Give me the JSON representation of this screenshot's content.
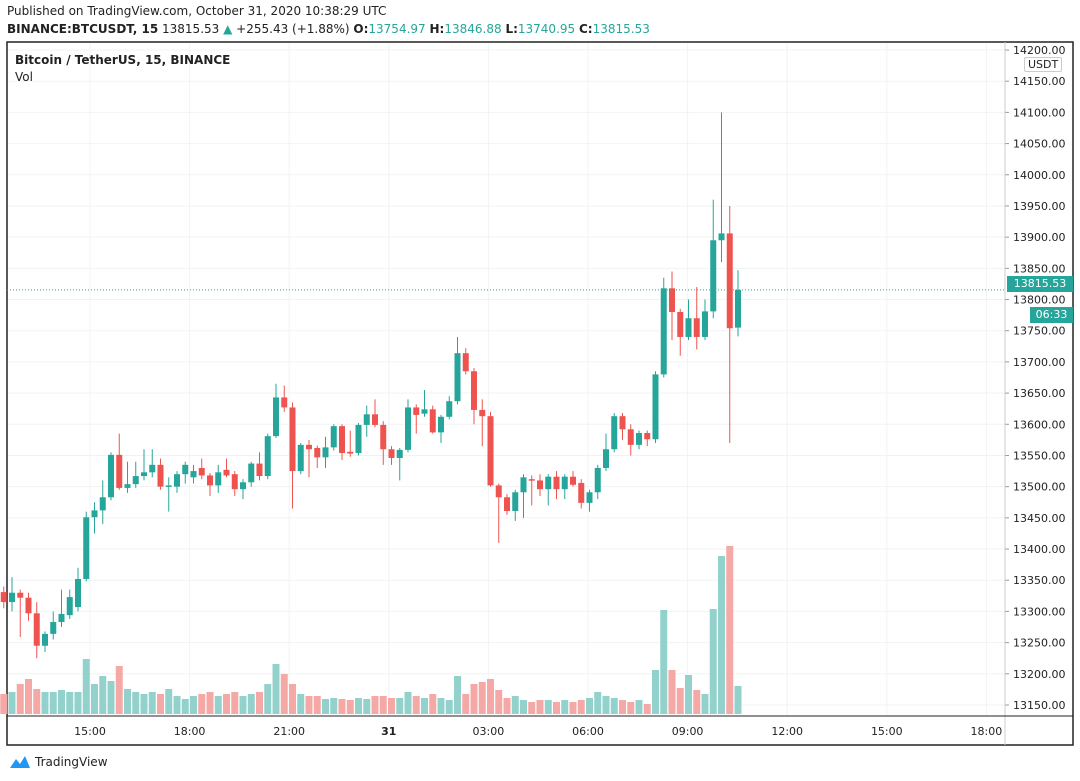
{
  "header": {
    "published": "Published on TradingView.com, October 31, 2020 10:38:29 UTC",
    "symbol": "BINANCE:BTCUSDT, 15",
    "last": "13815.53",
    "change": "+255.43 (+1.88%)",
    "o_label": "O:",
    "o": "13754.97",
    "h_label": "H:",
    "h": "13846.88",
    "l_label": "L:",
    "l": "13740.95",
    "c_label": "C:",
    "c": "13815.53"
  },
  "legend": {
    "title": "Bitcoin / TetherUS, 15, BINANCE",
    "vol": "Vol"
  },
  "price_axis": {
    "currency": "USDT",
    "last_price": "13815.53",
    "countdown": "06:33"
  },
  "footer": {
    "brand": "TradingView"
  },
  "colors": {
    "up": "#26a69a",
    "down": "#ef5350",
    "vol_up": "#93d2cc",
    "vol_down": "#f5a9a7"
  },
  "chart_data": {
    "type": "candlestick",
    "title": "Bitcoin / TetherUS, 15, BINANCE",
    "interval_minutes": 15,
    "ylim": [
      13150,
      14200
    ],
    "y_ticks": [
      "14200.00",
      "14150.00",
      "14100.00",
      "14050.00",
      "14000.00",
      "13950.00",
      "13900.00",
      "13850.00",
      "13800.00",
      "13750.00",
      "13700.00",
      "13650.00",
      "13600.00",
      "13550.00",
      "13500.00",
      "13450.00",
      "13400.00",
      "13350.00",
      "13300.00",
      "13250.00",
      "13200.00",
      "13150.00"
    ],
    "x_ticks": [
      "15:00",
      "18:00",
      "21:00",
      "31",
      "03:00",
      "06:00",
      "09:00",
      "12:00",
      "15:00",
      "18:00"
    ],
    "candle_columns": [
      "open",
      "high",
      "low",
      "close",
      "volume_relative"
    ],
    "candles": [
      [
        13331,
        13340,
        13305,
        13315,
        20
      ],
      [
        13315,
        13355,
        13300,
        13330,
        22
      ],
      [
        13330,
        13335,
        13259,
        13322,
        30
      ],
      [
        13322,
        13330,
        13285,
        13297,
        35
      ],
      [
        13297,
        13315,
        13225,
        13245,
        25
      ],
      [
        13245,
        13268,
        13235,
        13264,
        22
      ],
      [
        13264,
        13300,
        13255,
        13283,
        22
      ],
      [
        13283,
        13335,
        13275,
        13296,
        24
      ],
      [
        13294,
        13335,
        13288,
        13323,
        22
      ],
      [
        13307,
        13370,
        13300,
        13352,
        22
      ],
      [
        13352,
        13460,
        13348,
        13451,
        55
      ],
      [
        13451,
        13475,
        13425,
        13462,
        30
      ],
      [
        13462,
        13510,
        13440,
        13483,
        38
      ],
      [
        13483,
        13555,
        13478,
        13551,
        33
      ],
      [
        13551,
        13585,
        13495,
        13498,
        48
      ],
      [
        13498,
        13540,
        13490,
        13504,
        25
      ],
      [
        13504,
        13540,
        13498,
        13517,
        22
      ],
      [
        13517,
        13560,
        13510,
        13523,
        20
      ],
      [
        13523,
        13560,
        13515,
        13535,
        22
      ],
      [
        13535,
        13545,
        13495,
        13500,
        20
      ],
      [
        13500,
        13515,
        13460,
        13502,
        25
      ],
      [
        13500,
        13525,
        13490,
        13520,
        18
      ],
      [
        13520,
        13540,
        13505,
        13535,
        15
      ],
      [
        13515,
        13535,
        13505,
        13525,
        18
      ],
      [
        13530,
        13545,
        13512,
        13518,
        20
      ],
      [
        13518,
        13522,
        13485,
        13502,
        22
      ],
      [
        13502,
        13535,
        13490,
        13523,
        18
      ],
      [
        13527,
        13545,
        13515,
        13518,
        20
      ],
      [
        13520,
        13525,
        13485,
        13496,
        22
      ],
      [
        13496,
        13512,
        13480,
        13507,
        18
      ],
      [
        13507,
        13540,
        13500,
        13537,
        20
      ],
      [
        13537,
        13555,
        13510,
        13517,
        22
      ],
      [
        13517,
        13585,
        13512,
        13581,
        30
      ],
      [
        13581,
        13665,
        13578,
        13643,
        50
      ],
      [
        13643,
        13662,
        13620,
        13627,
        40
      ],
      [
        13627,
        13635,
        13465,
        13525,
        30
      ],
      [
        13525,
        13570,
        13520,
        13567,
        20
      ],
      [
        13567,
        13575,
        13515,
        13560,
        18
      ],
      [
        13562,
        13566,
        13530,
        13547,
        18
      ],
      [
        13547,
        13580,
        13530,
        13563,
        15
      ],
      [
        13563,
        13600,
        13558,
        13597,
        16
      ],
      [
        13597,
        13600,
        13543,
        13554,
        15
      ],
      [
        13556,
        13590,
        13548,
        13553,
        14
      ],
      [
        13554,
        13602,
        13550,
        13599,
        16
      ],
      [
        13599,
        13630,
        13580,
        13616,
        15
      ],
      [
        13616,
        13640,
        13595,
        13599,
        18
      ],
      [
        13599,
        13605,
        13535,
        13560,
        18
      ],
      [
        13560,
        13565,
        13535,
        13546,
        16
      ],
      [
        13546,
        13562,
        13510,
        13559,
        16
      ],
      [
        13559,
        13640,
        13555,
        13627,
        22
      ],
      [
        13627,
        13632,
        13585,
        13615,
        18
      ],
      [
        13617,
        13655,
        13612,
        13624,
        16
      ],
      [
        13624,
        13630,
        13585,
        13587,
        20
      ],
      [
        13587,
        13615,
        13570,
        13612,
        16
      ],
      [
        13612,
        13645,
        13608,
        13637,
        14
      ],
      [
        13637,
        13740,
        13632,
        13714,
        38
      ],
      [
        13714,
        13722,
        13680,
        13685,
        20
      ],
      [
        13685,
        13690,
        13600,
        13623,
        30
      ],
      [
        13623,
        13640,
        13565,
        13613,
        32
      ],
      [
        13613,
        13620,
        13500,
        13502,
        35
      ],
      [
        13502,
        13505,
        13410,
        13483,
        24
      ],
      [
        13483,
        13488,
        13455,
        13461,
        16
      ],
      [
        13461,
        13495,
        13445,
        13491,
        18
      ],
      [
        13491,
        13520,
        13450,
        13515,
        14
      ],
      [
        13512,
        13518,
        13470,
        13510,
        12
      ],
      [
        13510,
        13520,
        13485,
        13496,
        14
      ],
      [
        13496,
        13520,
        13470,
        13516,
        14
      ],
      [
        13516,
        13525,
        13480,
        13496,
        12
      ],
      [
        13496,
        13520,
        13480,
        13516,
        14
      ],
      [
        13516,
        13525,
        13500,
        13503,
        12
      ],
      [
        13506,
        13512,
        13465,
        13474,
        14
      ],
      [
        13474,
        13495,
        13460,
        13491,
        16
      ],
      [
        13491,
        13535,
        13480,
        13530,
        22
      ],
      [
        13530,
        13585,
        13525,
        13560,
        18
      ],
      [
        13560,
        13618,
        13555,
        13613,
        16
      ],
      [
        13613,
        13618,
        13575,
        13592,
        14
      ],
      [
        13592,
        13600,
        13550,
        13567,
        12
      ],
      [
        13567,
        13590,
        13560,
        13586,
        14
      ],
      [
        13586,
        13590,
        13565,
        13576,
        10
      ],
      [
        13576,
        13685,
        13570,
        13680,
        44
      ],
      [
        13680,
        13835,
        13675,
        13818,
        104
      ],
      [
        13818,
        13845,
        13735,
        13780,
        44
      ],
      [
        13780,
        13785,
        13710,
        13740,
        26
      ],
      [
        13740,
        13800,
        13735,
        13770,
        39
      ],
      [
        13770,
        13820,
        13720,
        13740,
        24
      ],
      [
        13740,
        13800,
        13735,
        13781,
        20
      ],
      [
        13781,
        13960,
        13770,
        13895,
        105
      ],
      [
        13895,
        14100,
        13860,
        13906,
        158
      ],
      [
        13906,
        13950,
        13570,
        13754,
        168
      ],
      [
        13754.97,
        13846.88,
        13740.95,
        13815.53,
        28
      ]
    ]
  }
}
